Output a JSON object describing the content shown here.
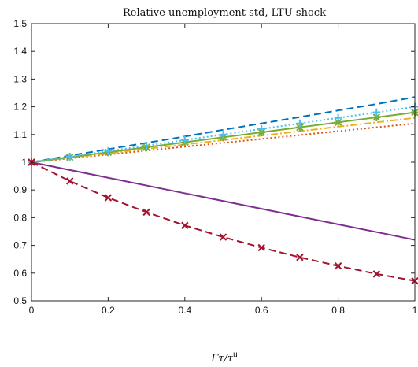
{
  "chart_data": {
    "type": "line",
    "title": "Relative unemployment std, LTU shock",
    "xlabel": "Γτ/τ",
    "xlabel_sup": "u",
    "ylabel": "",
    "xlim": [
      0,
      1
    ],
    "ylim": [
      0.5,
      1.5
    ],
    "x_ticks": [
      "0",
      "0.2",
      "0.4",
      "0.6",
      "0.8",
      "1"
    ],
    "y_ticks": [
      "0.5",
      "0.6",
      "0.7",
      "0.8",
      "0.9",
      "1",
      "1.1",
      "1.2",
      "1.3",
      "1.4",
      "1.5"
    ],
    "grid": false,
    "x": [
      0,
      0.1,
      0.2,
      0.3,
      0.4,
      0.5,
      0.6,
      0.7,
      0.8,
      0.9,
      1.0
    ],
    "series": [
      {
        "color": "#0072BD",
        "dash": "dashed",
        "marker": "none",
        "values": [
          1.0,
          1.024,
          1.047,
          1.07,
          1.093,
          1.117,
          1.14,
          1.163,
          1.187,
          1.21,
          1.235
        ]
      },
      {
        "color": "#D95319",
        "dash": "dotted",
        "marker": "none",
        "values": [
          1.0,
          1.014,
          1.028,
          1.042,
          1.056,
          1.07,
          1.084,
          1.098,
          1.112,
          1.126,
          1.14
        ]
      },
      {
        "color": "#EDB120",
        "dash": "dashdot",
        "marker": "none",
        "values": [
          1.0,
          1.016,
          1.032,
          1.048,
          1.064,
          1.08,
          1.096,
          1.112,
          1.128,
          1.144,
          1.16
        ]
      },
      {
        "color": "#7E2F8E",
        "dash": "solid",
        "marker": "none",
        "values": [
          1.0,
          0.972,
          0.944,
          0.916,
          0.888,
          0.86,
          0.832,
          0.804,
          0.776,
          0.748,
          0.72
        ]
      },
      {
        "color": "#77AC30",
        "dash": "solid",
        "marker": "asterisk",
        "values": [
          1.0,
          1.018,
          1.036,
          1.054,
          1.072,
          1.09,
          1.108,
          1.126,
          1.144,
          1.162,
          1.18
        ]
      },
      {
        "color": "#4DBEEE",
        "dash": "dotted",
        "marker": "plus",
        "values": [
          1.0,
          1.02,
          1.04,
          1.06,
          1.08,
          1.1,
          1.12,
          1.14,
          1.16,
          1.18,
          1.2
        ]
      },
      {
        "color": "#A2142F",
        "dash": "dashed",
        "marker": "x",
        "values": [
          1.0,
          0.932,
          0.872,
          0.82,
          0.772,
          0.73,
          0.692,
          0.657,
          0.626,
          0.597,
          0.572
        ]
      }
    ]
  }
}
